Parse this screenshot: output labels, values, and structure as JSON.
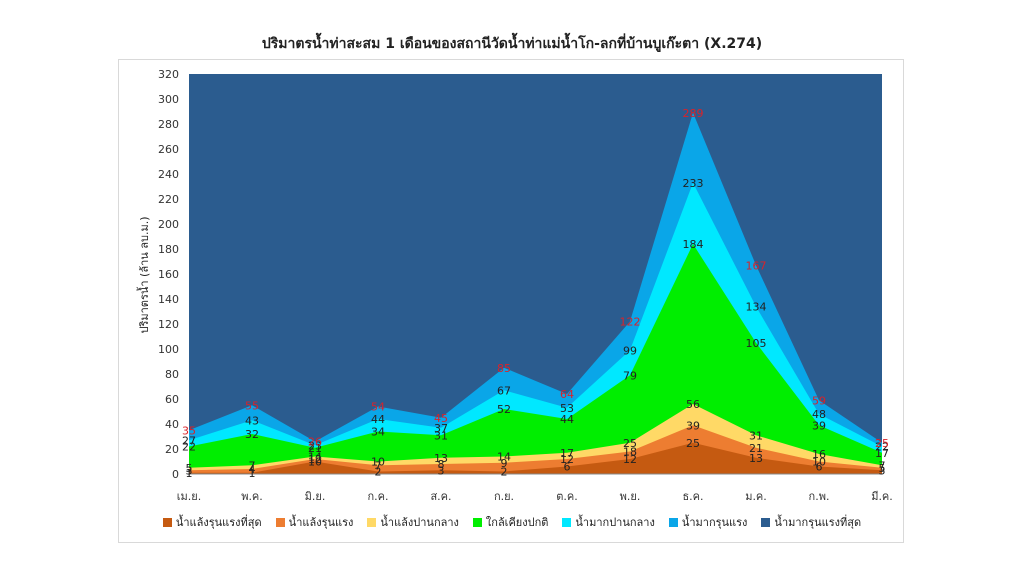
{
  "chart_data": {
    "type": "area",
    "title": "ปริมาตรน้ำท่าสะสม 1 เดือนของสถานีวัดน้ำท่าแม่น้ำโก-ลกที่บ้านบูเก๊ะตา (X.274)",
    "ylabel": "ปริมาตรน้ำ (ล้าน ลบ.ม.)",
    "xlabel": "",
    "ylim": [
      0,
      320
    ],
    "yticks": [
      0,
      20,
      40,
      60,
      80,
      100,
      120,
      140,
      160,
      180,
      200,
      220,
      240,
      260,
      280,
      300,
      320
    ],
    "categories": [
      "เม.ย.",
      "พ.ค.",
      "มิ.ย.",
      "ก.ค.",
      "ส.ค.",
      "ก.ย.",
      "ต.ค.",
      "พ.ย.",
      "ธ.ค.",
      "ม.ค.",
      "ก.พ.",
      "มี.ค."
    ],
    "legend_position": "bottom",
    "series": [
      {
        "name": "น้ำแล้งรุนแรงที่สุด",
        "color": "#c55a11",
        "values": [
          1,
          1,
          10,
          2,
          3,
          2,
          6,
          12,
          25,
          13,
          6,
          3
        ]
      },
      {
        "name": "น้ำแล้งรุนแรง",
        "color": "#ed7d31",
        "values": [
          3,
          4,
          12,
          7,
          8,
          9,
          12,
          18,
          39,
          21,
          10,
          5
        ]
      },
      {
        "name": "น้ำแล้งปานกลาง",
        "color": "#ffd966",
        "values": [
          5,
          7,
          14,
          10,
          13,
          14,
          17,
          25,
          56,
          31,
          16,
          7
        ]
      },
      {
        "name": "ใกล้เคียงปกติ",
        "color": "#00ee00",
        "values": [
          22,
          32,
          21,
          34,
          31,
          52,
          44,
          79,
          184,
          105,
          39,
          17
        ]
      },
      {
        "name": "น้ำมากปานกลาง",
        "color": "#00e8ff",
        "values": [
          27,
          43,
          23,
          44,
          37,
          67,
          53,
          99,
          233,
          134,
          48,
          22
        ]
      },
      {
        "name": "น้ำมากรุนแรง",
        "color": "#0aa6e8",
        "values": [
          35,
          55,
          26,
          54,
          45,
          85,
          64,
          122,
          289,
          167,
          59,
          25
        ]
      },
      {
        "name": "น้ำมากรุนแรงที่สุด",
        "color": "#2b5c8f",
        "values": [
          320,
          320,
          320,
          320,
          320,
          320,
          320,
          320,
          320,
          320,
          320,
          320
        ]
      }
    ],
    "labeled_series": [
      0,
      1,
      2,
      3,
      4,
      5
    ]
  }
}
